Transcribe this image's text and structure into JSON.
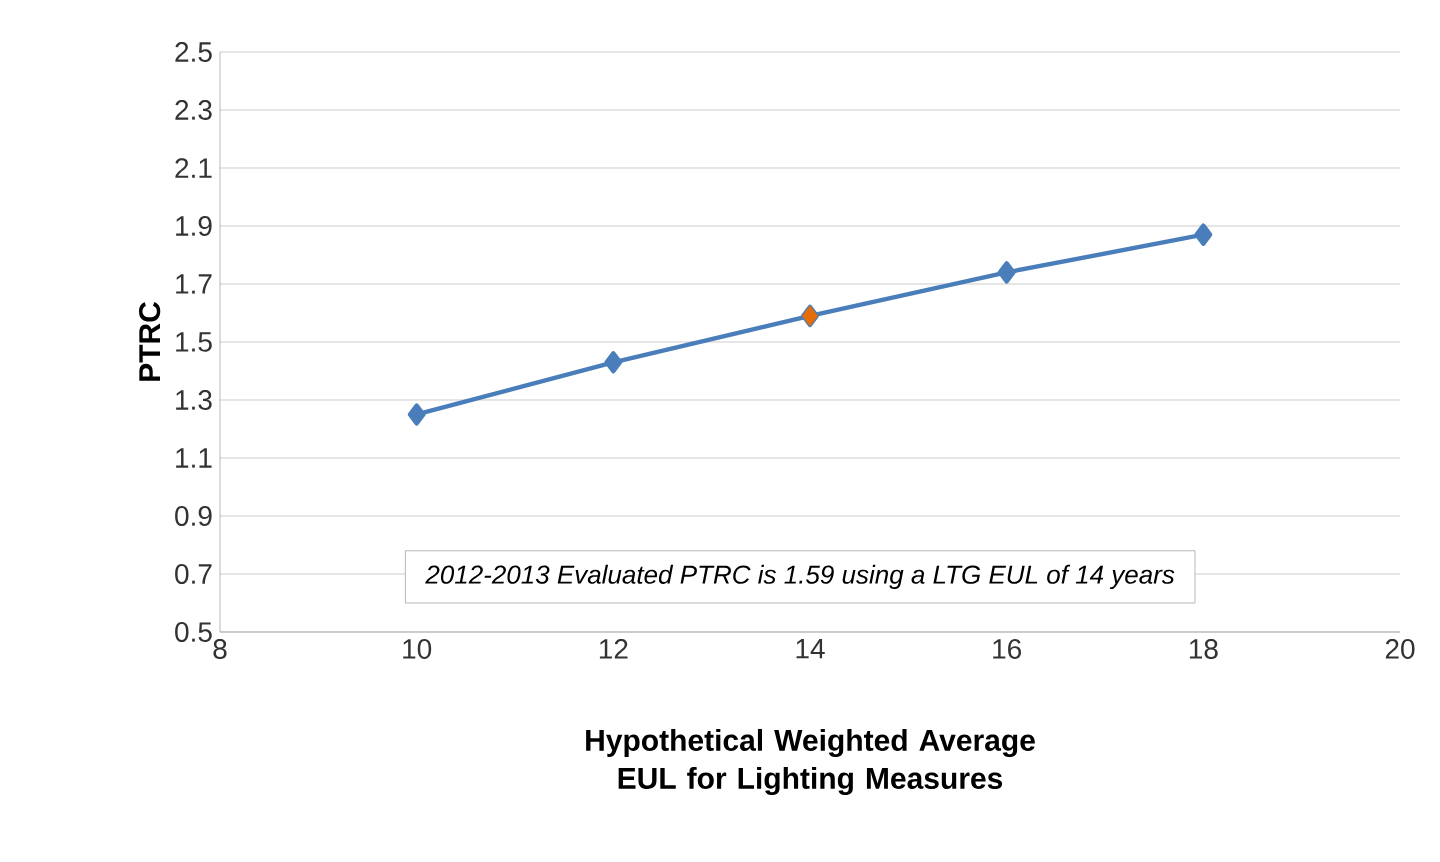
{
  "chart_data": {
    "type": "line",
    "xlabel": "Hypothetical Weighted Average\nEUL for Lighting Measures",
    "ylabel": "PTRC",
    "series": [
      {
        "x": [
          10,
          12,
          14,
          16,
          18
        ],
        "values": [
          1.25,
          1.43,
          1.59,
          1.74,
          1.87
        ],
        "color": "#4a7ebb"
      },
      {
        "x": [
          14
        ],
        "values": [
          1.59
        ],
        "color": "#e46c0a",
        "type": "scatter"
      }
    ],
    "xlim": [
      8,
      20
    ],
    "xticks": [
      8,
      10,
      12,
      14,
      16,
      18,
      20
    ],
    "ylim": [
      0.5,
      2.5
    ],
    "yticks": [
      0.5,
      0.7,
      0.9,
      1.1,
      1.3,
      1.5,
      1.7,
      1.9,
      2.1,
      2.3,
      2.5
    ],
    "grid": "y",
    "marker": "diamond",
    "annotations": [
      "2012-2013 Evaluated PTRC is 1.59 using a LTG EUL of 14 years"
    ]
  }
}
